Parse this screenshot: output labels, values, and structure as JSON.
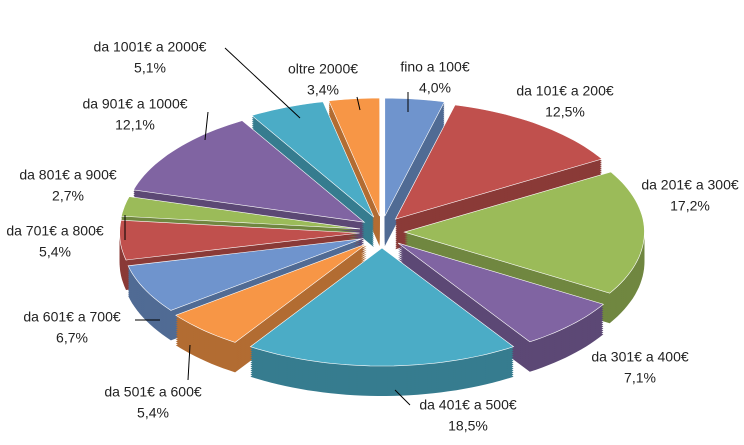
{
  "chart_data": {
    "type": "pie",
    "categories": [
      "fino a 100€",
      "da 101€ a 200€",
      "da 201€ a 300€",
      "da 301€ a 400€",
      "da 401€ a 500€",
      "da 501€ a 600€",
      "da 601€ a 700€",
      "da 701€ a 800€",
      "da 801€ a 900€",
      "da 901€ a 1000€",
      "da 1001€ a 2000€",
      "oltre 2000€"
    ],
    "values": [
      4.0,
      12.5,
      17.2,
      7.1,
      18.5,
      5.4,
      6.7,
      5.4,
      2.7,
      12.1,
      5.1,
      3.4
    ],
    "value_labels": [
      "4,0%",
      "12,5%",
      "17,2%",
      "7,1%",
      "18,5%",
      "5,4%",
      "6,7%",
      "5,4%",
      "2,7%",
      "12,1%",
      "5,1%",
      "3,4%"
    ],
    "colors": [
      "#6f94cd",
      "#c0504d",
      "#9bbb59",
      "#8064a2",
      "#4bacc6",
      "#f79646",
      "#6f94cd",
      "#c0504d",
      "#9bbb59",
      "#8064a2",
      "#4bacc6",
      "#f79646"
    ]
  }
}
